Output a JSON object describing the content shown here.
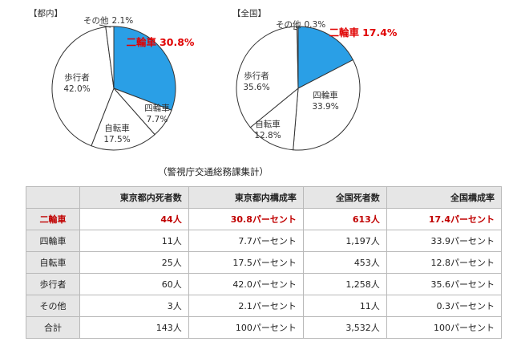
{
  "chart_data": [
    {
      "type": "pie",
      "title": "【都内】",
      "slices": [
        {
          "label": "二輪車",
          "value": 30.8,
          "value_text": "30.8%",
          "color": "#2a9fe6",
          "highlight": true
        },
        {
          "label": "四輪車",
          "value": 7.7,
          "value_text": "7.7%",
          "color": "#ffffff"
        },
        {
          "label": "自転車",
          "value": 17.5,
          "value_text": "17.5%",
          "color": "#ffffff"
        },
        {
          "label": "歩行者",
          "value": 42.0,
          "value_text": "42.0%",
          "color": "#ffffff"
        },
        {
          "label": "その他",
          "value": 2.1,
          "value_text": "2.1%",
          "color": "#ffffff"
        }
      ]
    },
    {
      "type": "pie",
      "title": "【全国】",
      "slices": [
        {
          "label": "二輪車",
          "value": 17.4,
          "value_text": "17.4%",
          "color": "#2a9fe6",
          "highlight": true
        },
        {
          "label": "四輪車",
          "value": 33.9,
          "value_text": "33.9%",
          "color": "#ffffff"
        },
        {
          "label": "自転車",
          "value": 12.8,
          "value_text": "12.8%",
          "color": "#ffffff"
        },
        {
          "label": "歩行者",
          "value": 35.6,
          "value_text": "35.6%",
          "color": "#ffffff"
        },
        {
          "label": "その他",
          "value": 0.3,
          "value_text": "0.3%",
          "color": "#ffffff"
        }
      ]
    },
    {
      "type": "table",
      "columns": [
        "",
        "東京都内死者数",
        "東京都内構成率",
        "全国死者数",
        "全国構成率"
      ],
      "rows": [
        {
          "label": "二輪車",
          "cells": [
            "44人",
            "30.8パーセント",
            "613人",
            "17.4パーセント"
          ],
          "highlight": true
        },
        {
          "label": "四輪車",
          "cells": [
            "11人",
            "7.7パーセント",
            "1,197人",
            "33.9パーセント"
          ]
        },
        {
          "label": "自転車",
          "cells": [
            "25人",
            "17.5パーセント",
            "453人",
            "12.8パーセント"
          ]
        },
        {
          "label": "歩行者",
          "cells": [
            "60人",
            "42.0パーセント",
            "1,258人",
            "35.6パーセント"
          ]
        },
        {
          "label": "その他",
          "cells": [
            "3人",
            "2.1パーセント",
            "11人",
            "0.3パーセント"
          ]
        },
        {
          "label": "合計",
          "cells": [
            "143人",
            "100パーセント",
            "3,532人",
            "100パーセント"
          ]
        }
      ]
    }
  ],
  "source": "（警視庁交通総務課集計）",
  "colors": {
    "highlight_slice": "#2a9fe6",
    "highlight_text": "#e00000",
    "header_bg": "#e6e6e6",
    "border": "#b9b9b9"
  }
}
